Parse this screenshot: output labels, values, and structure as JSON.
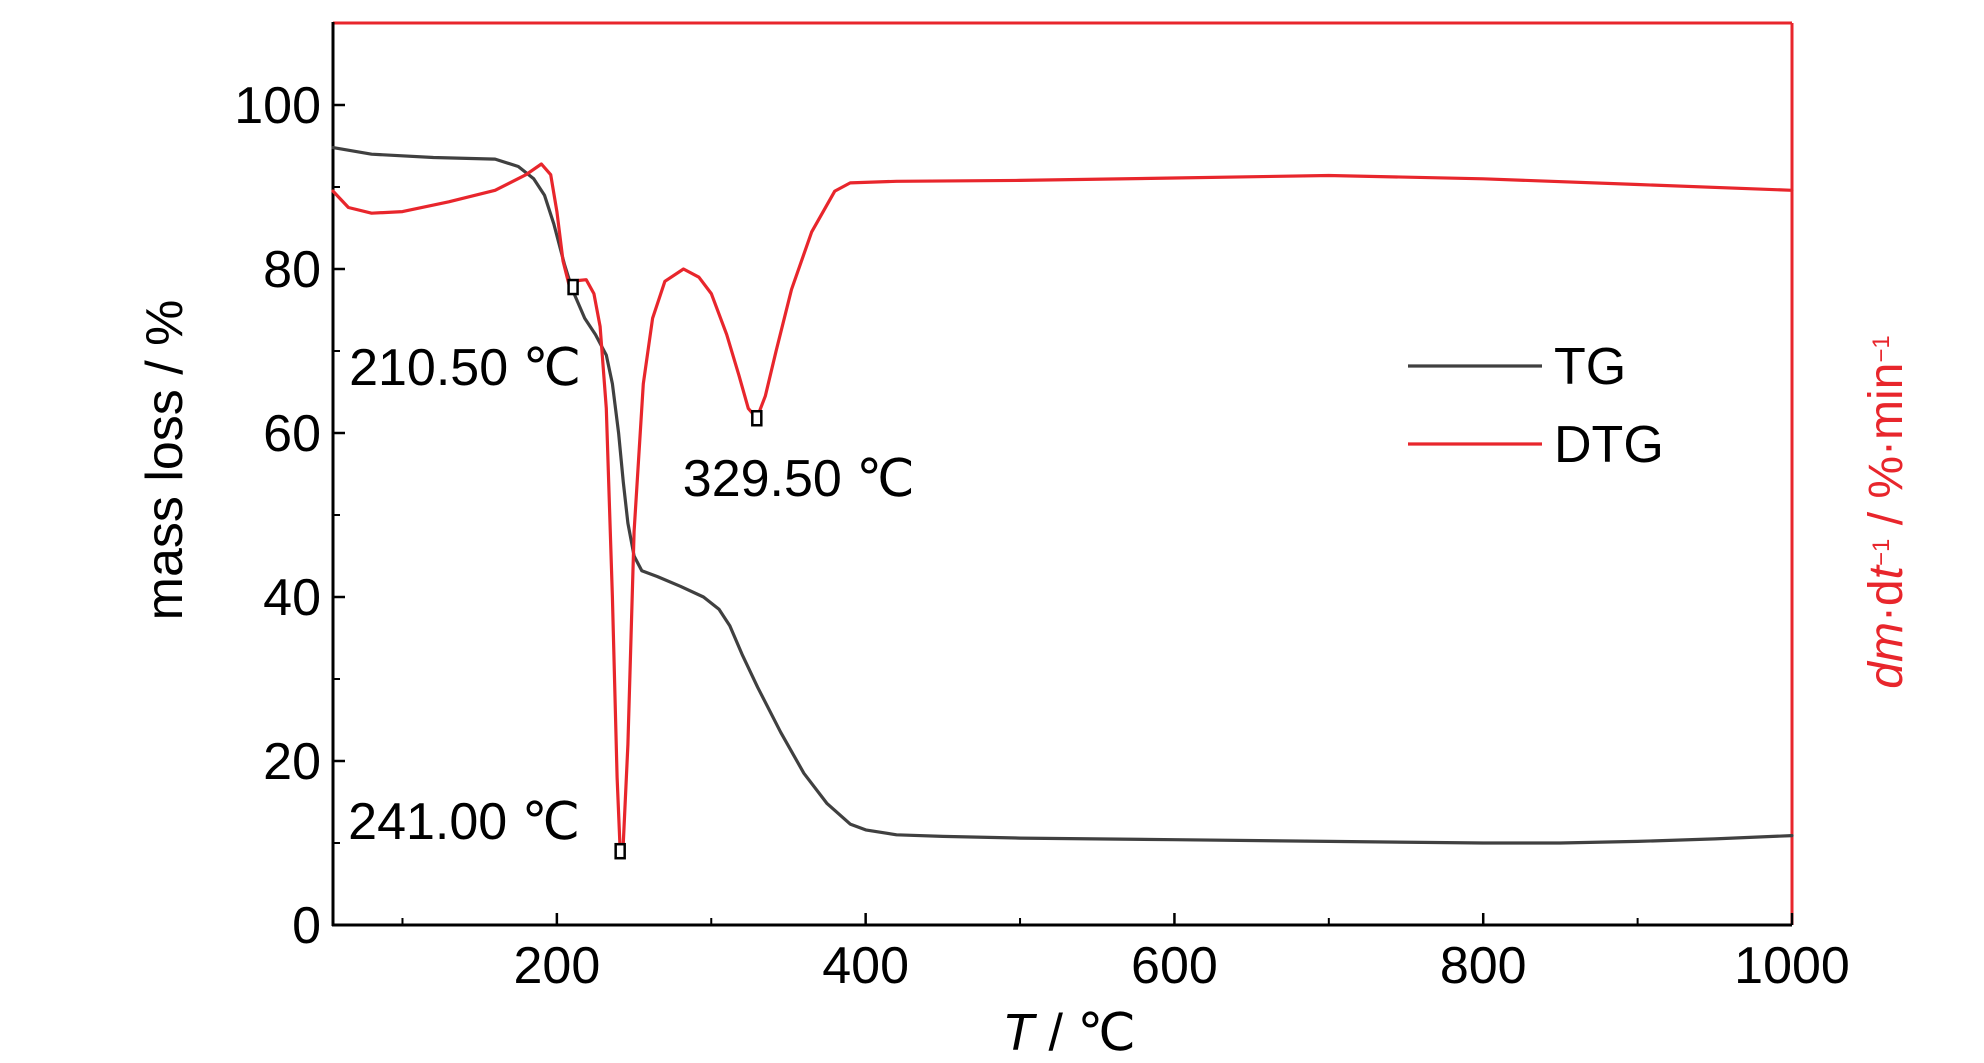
{
  "chart_data": {
    "type": "line",
    "x_axis": {
      "label_italic": "T",
      "label_rest": " / ℃",
      "range": [
        55,
        1000
      ],
      "ticks": [
        200,
        400,
        600,
        800,
        1000
      ],
      "tick_labels": [
        "200",
        "400",
        "600",
        "800",
        "1000"
      ],
      "minor_ticks": [
        100,
        300,
        500,
        700,
        900
      ]
    },
    "y_axis_left": {
      "label": "mass loss / %",
      "range": [
        0,
        110
      ],
      "ticks": [
        0,
        20,
        40,
        60,
        80,
        100
      ],
      "tick_labels": [
        "0",
        "20",
        "40",
        "60",
        "80",
        "100"
      ],
      "minor_ticks": [
        10,
        30,
        50,
        70,
        90
      ]
    },
    "y_axis_right": {
      "label_parts": [
        "dm",
        "·d",
        "t",
        "−1",
        " / %·min",
        "−1"
      ],
      "color": "#e8262c",
      "ticks_shown": false
    },
    "series": [
      {
        "name": "TG",
        "color": "#404040",
        "x": [
          55,
          80,
          120,
          160,
          175,
          185,
          192,
          198,
          205,
          210,
          218,
          225,
          232,
          236,
          240,
          243,
          246,
          250,
          255,
          265,
          280,
          295,
          305,
          312,
          320,
          330,
          345,
          360,
          375,
          390,
          400,
          420,
          450,
          500,
          600,
          700,
          800,
          850,
          900,
          950,
          1000
        ],
        "y": [
          94.8,
          94,
          93.6,
          93.4,
          92.5,
          91,
          89,
          85.5,
          80.5,
          77.5,
          74,
          72,
          69.5,
          66,
          60,
          54,
          49,
          45,
          43.2,
          42.5,
          41.3,
          40,
          38.5,
          36.5,
          33,
          29,
          23.5,
          18.5,
          14.8,
          12.3,
          11.6,
          11,
          10.8,
          10.6,
          10.4,
          10.2,
          10,
          10,
          10.2,
          10.5,
          10.9
        ]
      },
      {
        "name": "DTG",
        "color": "#e8262c",
        "x": [
          55,
          65,
          80,
          100,
          130,
          160,
          180,
          190,
          196,
          200,
          204,
          208,
          210.5,
          214,
          219,
          224,
          228,
          232,
          236,
          239,
          241,
          243,
          246,
          250,
          256,
          262,
          270,
          282,
          292,
          300,
          310,
          318,
          324,
          329.5,
          335,
          342,
          352,
          365,
          380,
          390,
          420,
          500,
          600,
          700,
          800,
          900,
          1000
        ],
        "y": [
          89.5,
          87.5,
          86.8,
          87,
          88.2,
          89.6,
          91.5,
          92.8,
          91.5,
          87,
          81,
          78,
          77.8,
          78.6,
          78.7,
          77,
          73,
          63,
          40,
          18,
          9,
          10,
          22,
          48,
          66,
          74,
          78.5,
          80,
          79,
          77,
          72,
          67,
          63,
          61.8,
          64.5,
          70,
          77.5,
          84.5,
          89.5,
          90.5,
          90.7,
          90.8,
          91.1,
          91.4,
          91,
          90.3,
          89.6
        ]
      }
    ],
    "legend": {
      "placement": "right-middle",
      "entries": [
        "TG",
        "DTG"
      ]
    },
    "annotations": [
      {
        "text": "210.50 ℃",
        "x": 210.5,
        "y": 77.8
      },
      {
        "text": "241.00 ℃",
        "x": 241,
        "y": 9
      },
      {
        "text": "329.50 ℃",
        "x": 329.5,
        "y": 61.8
      }
    ],
    "grid": false,
    "axis_color": "#000000"
  }
}
